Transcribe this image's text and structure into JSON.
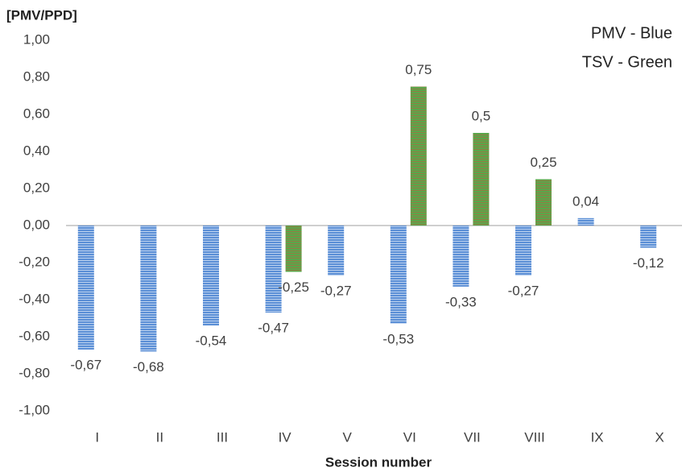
{
  "chart_data": {
    "type": "bar",
    "y_label": "[PMV/PPD]",
    "x_label": "Session number",
    "categories": [
      "I",
      "II",
      "III",
      "IV",
      "V",
      "VI",
      "VII",
      "VIII",
      "IX",
      "X"
    ],
    "series": [
      {
        "name": "PMV - Blue",
        "color": "#5b8fd6",
        "values": [
          -0.67,
          -0.68,
          -0.54,
          -0.47,
          -0.27,
          -0.53,
          -0.33,
          -0.27,
          0.04,
          -0.12
        ],
        "value_labels": [
          "-0,67",
          "-0,68",
          "-0,54",
          "-0,47",
          "-0,27",
          "-0,53",
          "-0,33",
          "-0,27",
          "0,04",
          "-0,12"
        ]
      },
      {
        "name": "TSV - Green",
        "color": "#5aa64a",
        "values": [
          null,
          null,
          null,
          -0.25,
          null,
          0.75,
          0.5,
          0.25,
          null,
          null
        ],
        "value_labels": [
          null,
          null,
          null,
          "-0,25",
          null,
          "0,75",
          "0,5",
          "0,25",
          null,
          null
        ]
      }
    ],
    "ylim": [
      -1,
      1
    ],
    "yticks": [
      {
        "value": -1,
        "label": "-1,00"
      },
      {
        "value": -0.8,
        "label": "-0,80"
      },
      {
        "value": -0.6,
        "label": "-0,60"
      },
      {
        "value": -0.4,
        "label": "-0,40"
      },
      {
        "value": -0.2,
        "label": "-0,20"
      },
      {
        "value": 0,
        "label": "0,00"
      },
      {
        "value": 0.2,
        "label": "0,20"
      },
      {
        "value": 0.4,
        "label": "0,40"
      },
      {
        "value": 0.6,
        "label": "0,60"
      },
      {
        "value": 0.8,
        "label": "0,80"
      },
      {
        "value": 1,
        "label": "1,00"
      }
    ],
    "grid": false
  }
}
